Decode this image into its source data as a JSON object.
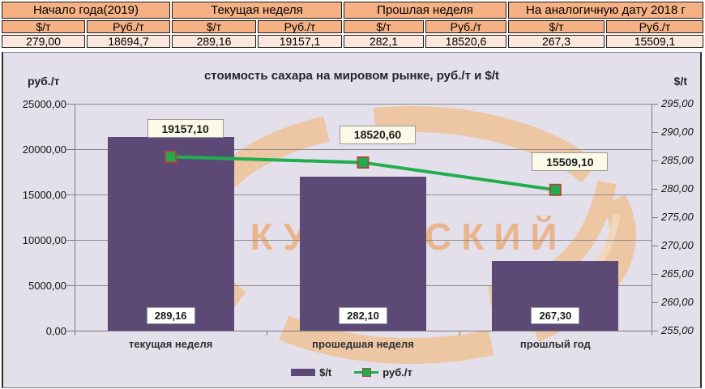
{
  "table": {
    "units": {
      "usd": "$/т",
      "rub": "Руб./т"
    },
    "groups": [
      {
        "label": "Начало года(2019)",
        "usd": "279,00",
        "rub": "18694,7"
      },
      {
        "label": "Текущая неделя",
        "usd": "289,16",
        "rub": "19157,1"
      },
      {
        "label": "Прошлая неделя",
        "usd": "282,1",
        "rub": "18520,6"
      },
      {
        "label": "На аналогичную дату 2018 г",
        "usd": "267,3",
        "rub": "15509,1"
      }
    ]
  },
  "chart": {
    "title": "стоимость сахара на мировом рынке, руб./т и $/t",
    "left_axis": {
      "label": "руб./т",
      "min": 0,
      "max": 25000,
      "step": 5000,
      "tick_labels": [
        "25000,00",
        "20000,00",
        "15000,00",
        "10000,00",
        "5000,00",
        "0,00"
      ]
    },
    "right_axis": {
      "label": "$/t",
      "min": 255,
      "max": 295,
      "step": 5,
      "tick_labels": [
        "295,00",
        "290,00",
        "285,00",
        "280,00",
        "275,00",
        "270,00",
        "265,00",
        "260,00",
        "255,00"
      ]
    }
  },
  "chart_data": {
    "type": "bar",
    "title": "стоимость сахара на мировом рынке, руб./т и $/t",
    "categories": [
      "текущая неделя",
      "прошедшая неделя",
      "прошлый год"
    ],
    "series": [
      {
        "name": "$/t",
        "type": "bar",
        "axis": "right",
        "values": [
          289.16,
          282.1,
          267.3
        ],
        "value_labels": [
          "289,16",
          "282,10",
          "267,30"
        ]
      },
      {
        "name": "руб./т",
        "type": "line",
        "axis": "left",
        "values": [
          19157.1,
          18520.6,
          15509.1
        ],
        "value_labels": [
          "19157,10",
          "18520,60",
          "15509,10"
        ]
      }
    ],
    "left_ylim": [
      0,
      25000
    ],
    "right_ylim": [
      255,
      295
    ],
    "grid": true,
    "legend_position": "bottom"
  },
  "legend": {
    "items": [
      {
        "label": "$/t"
      },
      {
        "label": "руб./т"
      }
    ]
  },
  "watermark": {
    "text": "КУБАНСКИЙ"
  },
  "colors": {
    "bar": "#5C4975",
    "line": "#1FAE4D",
    "marker_border": "#A84A3E",
    "table_header_bg": "#F5B183",
    "table_value_bg": "#FBE7DB",
    "chart_bg": "#E4E0EB",
    "grid": "#8C8C8C",
    "watermark": "#EDC7A4",
    "watermark_text": "#EAB58C"
  }
}
